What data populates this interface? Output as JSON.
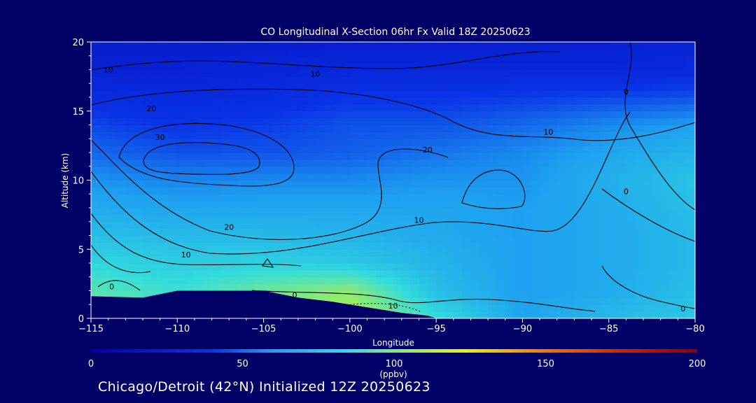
{
  "chart_data": {
    "type": "heatmap",
    "title": "CO Longitudinal X-Section 06hr  Fx Valid 18Z 20250623",
    "xlabel": "Longitude",
    "ylabel": "Altitude (km)",
    "xlim": [
      -115,
      -80
    ],
    "ylim": [
      0,
      20
    ],
    "x_ticks": [
      -115,
      -110,
      -105,
      -100,
      -95,
      -90,
      -85,
      -80
    ],
    "x_tick_labels": [
      "−115",
      "−110",
      "−105",
      "−100",
      "−95",
      "−90",
      "−85",
      "−80"
    ],
    "y_ticks": [
      0,
      5,
      10,
      15,
      20
    ],
    "y_tick_labels": [
      "0",
      "5",
      "10",
      "15",
      "20"
    ],
    "colorbar": {
      "min": 0,
      "max": 200,
      "ticks": [
        0,
        50,
        100,
        150,
        200
      ],
      "tick_labels": [
        "0",
        "50",
        "100",
        "150",
        "200"
      ],
      "unit": "(ppbv)"
    },
    "field_ppbv": {
      "x": [
        -115,
        -110,
        -105,
        -100,
        -95,
        -90,
        -85,
        -80
      ],
      "y": [
        0,
        2,
        4,
        6,
        8,
        10,
        12,
        14,
        16,
        18,
        20
      ],
      "values": [
        [
          98,
          92,
          100,
          112,
          85,
          62,
          70,
          76
        ],
        [
          92,
          86,
          96,
          104,
          72,
          60,
          64,
          72
        ],
        [
          82,
          78,
          80,
          76,
          68,
          60,
          64,
          70
        ],
        [
          72,
          70,
          70,
          68,
          64,
          60,
          64,
          70
        ],
        [
          64,
          62,
          62,
          62,
          62,
          60,
          64,
          72
        ],
        [
          58,
          55,
          56,
          56,
          58,
          58,
          66,
          74
        ],
        [
          50,
          46,
          46,
          48,
          52,
          56,
          62,
          68
        ],
        [
          44,
          40,
          42,
          46,
          46,
          50,
          56,
          60
        ],
        [
          36,
          34,
          36,
          40,
          40,
          42,
          44,
          46
        ],
        [
          28,
          28,
          30,
          32,
          32,
          32,
          32,
          34
        ],
        [
          24,
          24,
          24,
          26,
          26,
          26,
          26,
          28
        ]
      ]
    },
    "terrain_km": {
      "x": [
        -115,
        -112,
        -110,
        -107,
        -105,
        -103,
        -101,
        -99,
        -97,
        -95.5,
        -95,
        -90,
        -85,
        -80
      ],
      "y": [
        1.6,
        1.5,
        2.0,
        2.0,
        2.0,
        1.5,
        1.2,
        0.8,
        0.4,
        0.2,
        0,
        0,
        0,
        0
      ]
    },
    "contour_labels": [
      {
        "text": "10",
        "x": -114,
        "y": 17.8
      },
      {
        "text": "10",
        "x": -102,
        "y": 17.5
      },
      {
        "text": "20",
        "x": -111.5,
        "y": 15
      },
      {
        "text": "30",
        "x": -111,
        "y": 12.9
      },
      {
        "text": "20",
        "x": -95.5,
        "y": 12
      },
      {
        "text": "10",
        "x": -88.5,
        "y": 13.3
      },
      {
        "text": "0",
        "x": -84,
        "y": 16.2
      },
      {
        "text": "0",
        "x": -84,
        "y": 9
      },
      {
        "text": "20",
        "x": -107,
        "y": 6.4
      },
      {
        "text": "10",
        "x": -96,
        "y": 6.9
      },
      {
        "text": "10",
        "x": -109.5,
        "y": 4.4
      },
      {
        "text": "0",
        "x": -113.8,
        "y": 2.1
      },
      {
        "text": "0",
        "x": -103.2,
        "y": 1.5
      },
      {
        "text": "10",
        "x": -97.5,
        "y": 0.7
      },
      {
        "text": "0",
        "x": -80.7,
        "y": 0.5
      }
    ]
  },
  "caption": "Chicago/Detroit (42°N) Initialized 12Z 20250623"
}
